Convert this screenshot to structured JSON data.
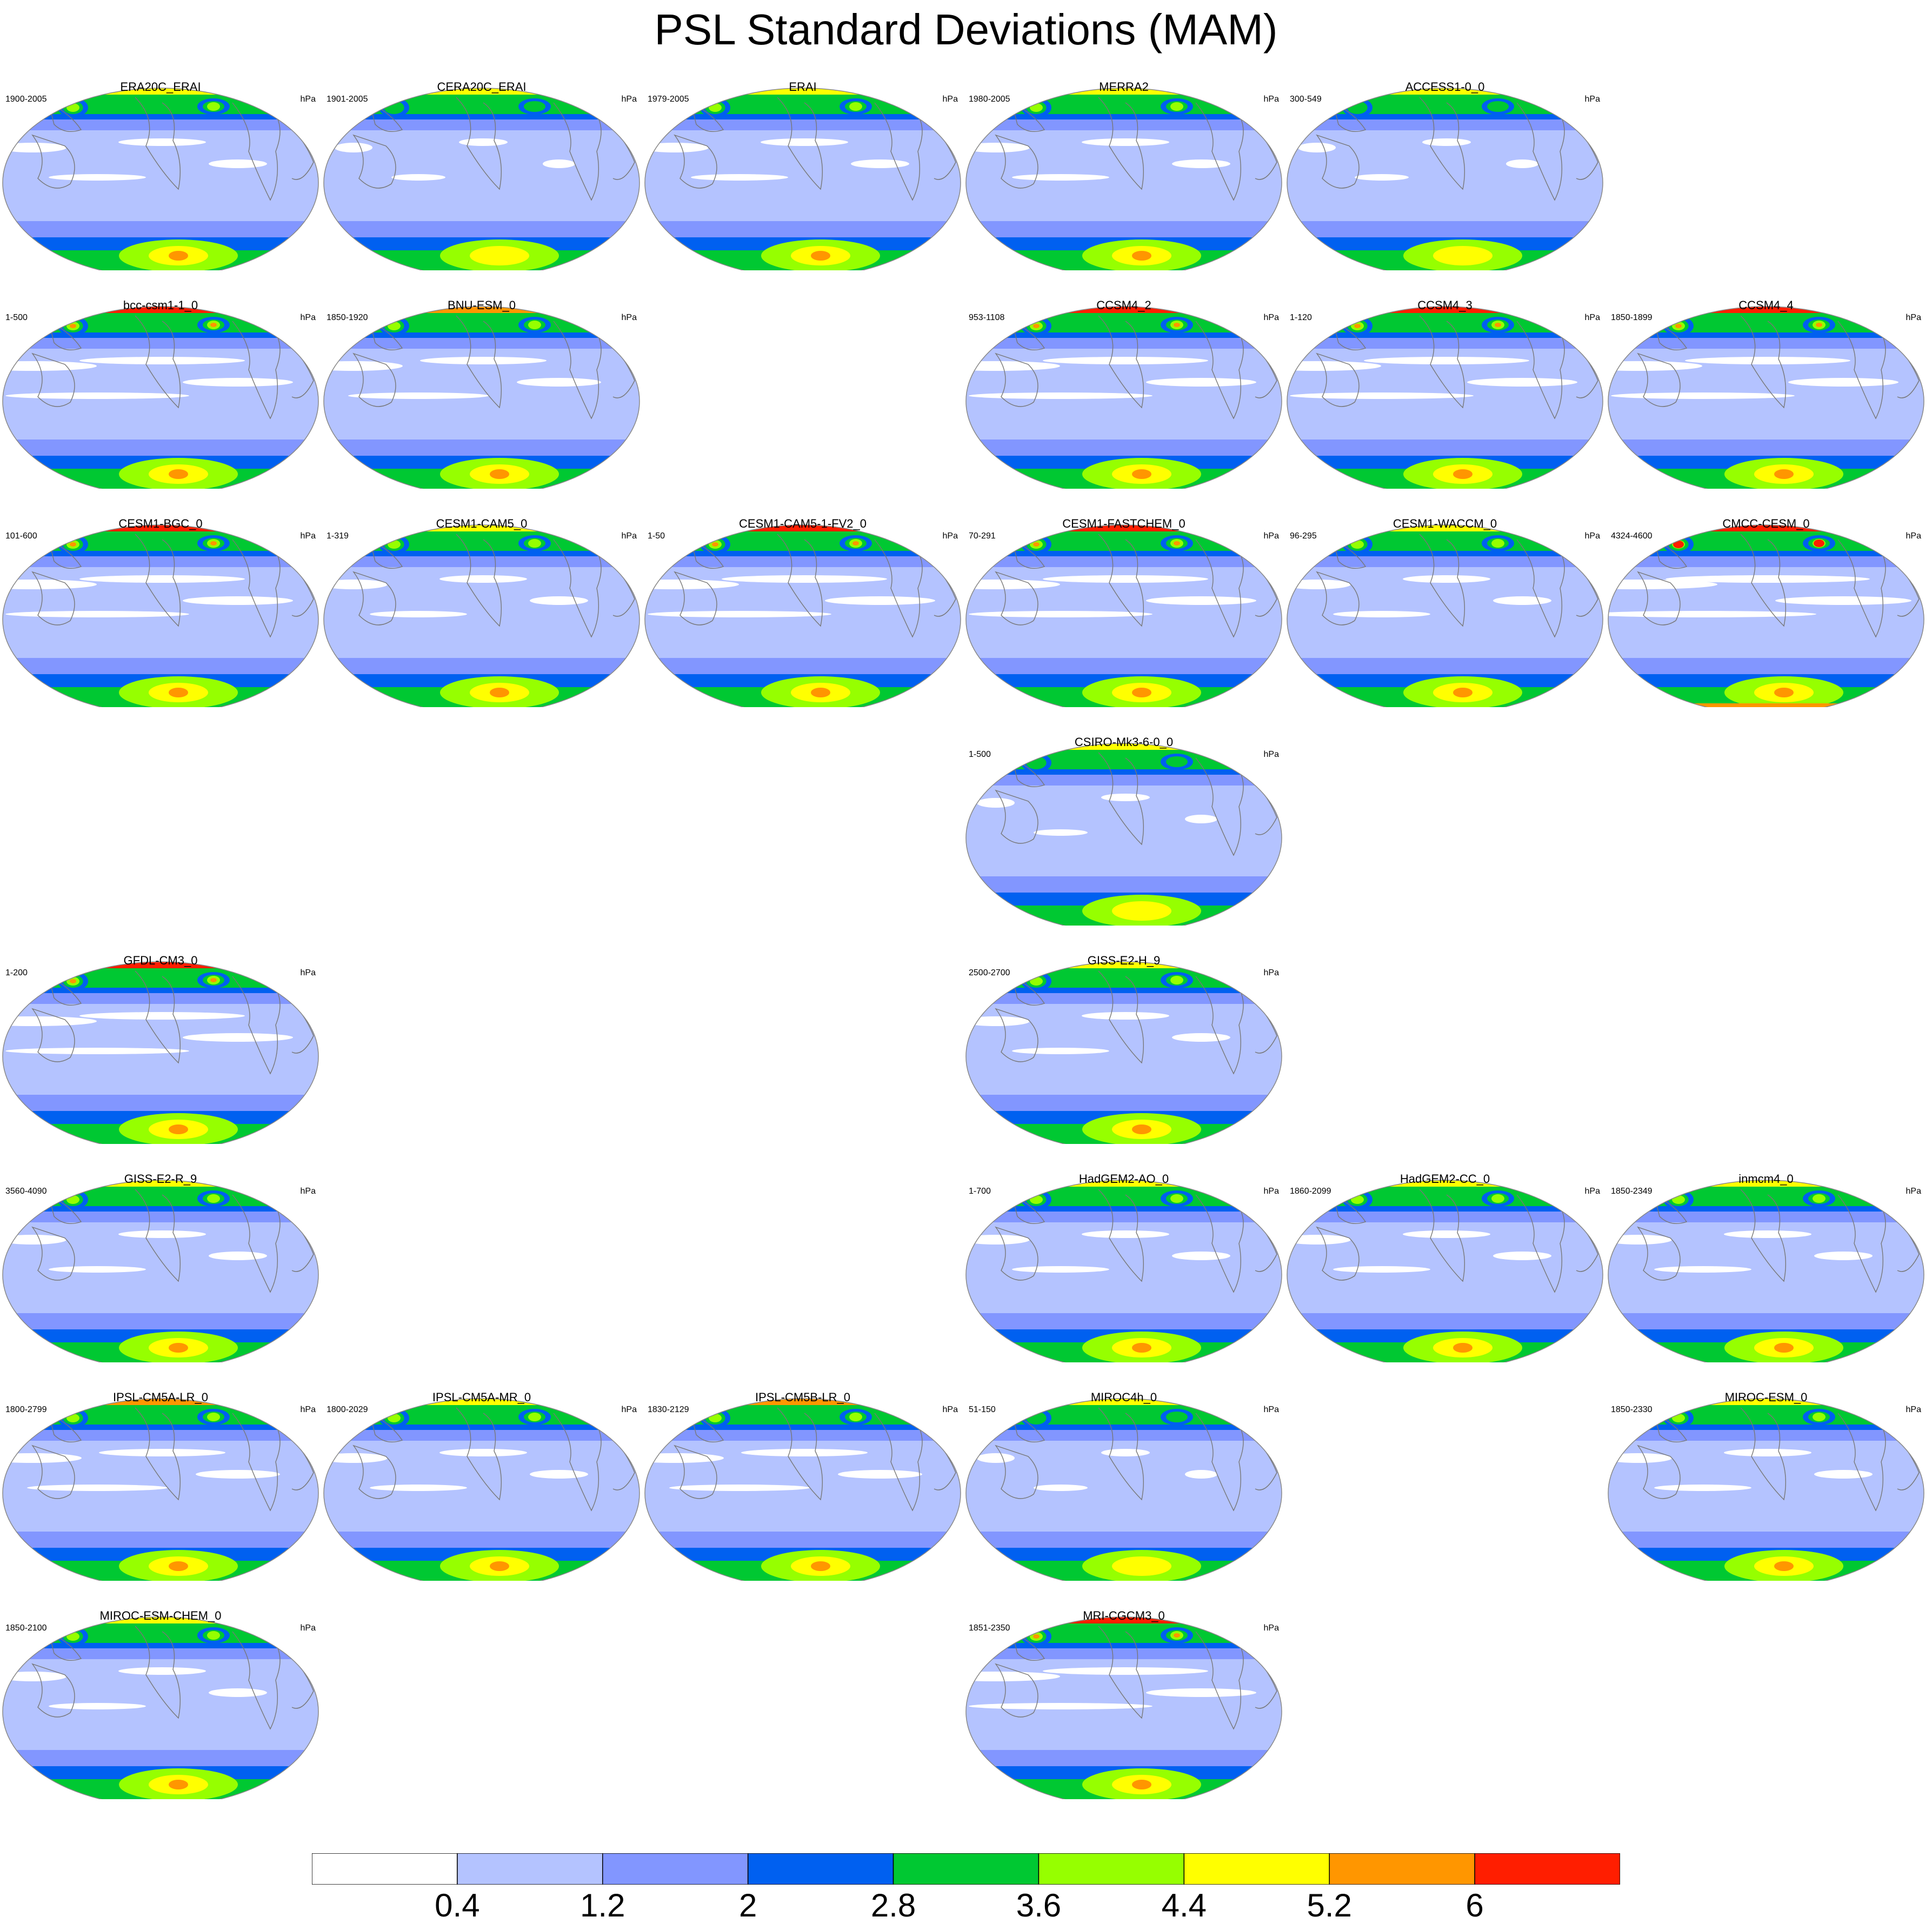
{
  "title": "PSL Standard Deviations (MAM)",
  "unit_label": "hPa",
  "colorbar": {
    "levels": [
      "0.4",
      "1.2",
      "2",
      "2.8",
      "3.6",
      "4.4",
      "5.2",
      "6"
    ],
    "colors": [
      "#ffffff",
      "#b4c3ff",
      "#8296ff",
      "#0060f0",
      "#00c832",
      "#96ff00",
      "#ffff00",
      "#ff9600",
      "#ff1e00"
    ]
  },
  "grid": {
    "columns": 6,
    "rows": 8
  },
  "panels": [
    {
      "name": "ERA20C_ERAI",
      "range": "1900-2005",
      "row": 0,
      "col": 0,
      "intensity": 1
    },
    {
      "name": "CERA20C_ERAI",
      "range": "1901-2005",
      "row": 0,
      "col": 1,
      "intensity": 0
    },
    {
      "name": "ERAI",
      "range": "1979-2005",
      "row": 0,
      "col": 2,
      "intensity": 1
    },
    {
      "name": "MERRA2",
      "range": "1980-2005",
      "row": 0,
      "col": 3,
      "intensity": 1
    },
    {
      "name": "ACCESS1-0_0",
      "range": "300-549",
      "row": 0,
      "col": 4,
      "intensity": 0
    },
    {
      "name": "bcc-csm1-1_0",
      "range": "1-500",
      "row": 1,
      "col": 0,
      "intensity": 3
    },
    {
      "name": "BNU-ESM_0",
      "range": "1850-1920",
      "row": 1,
      "col": 1,
      "intensity": 2
    },
    {
      "name": "CCSM4_2",
      "range": "953-1108",
      "row": 1,
      "col": 3,
      "intensity": 3
    },
    {
      "name": "CCSM4_3",
      "range": "1-120",
      "row": 1,
      "col": 4,
      "intensity": 3
    },
    {
      "name": "CCSM4_4",
      "range": "1850-1899",
      "row": 1,
      "col": 5,
      "intensity": 3
    },
    {
      "name": "CESM1-BGC_0",
      "range": "101-600",
      "row": 2,
      "col": 0,
      "intensity": 3
    },
    {
      "name": "CESM1-CAM5_0",
      "range": "1-319",
      "row": 2,
      "col": 1,
      "intensity": 1
    },
    {
      "name": "CESM1-CAM5-1-FV2_0",
      "range": "1-50",
      "row": 2,
      "col": 2,
      "intensity": 3
    },
    {
      "name": "CESM1-FASTCHEM_0",
      "range": "70-291",
      "row": 2,
      "col": 3,
      "intensity": 3
    },
    {
      "name": "CESM1-WACCM_0",
      "range": "96-295",
      "row": 2,
      "col": 4,
      "intensity": 1
    },
    {
      "name": "CMCC-CESM_0",
      "range": "4324-4600",
      "row": 2,
      "col": 5,
      "intensity": 4
    },
    {
      "name": "CSIRO-Mk3-6-0_0",
      "range": "1-500",
      "row": 3,
      "col": 3,
      "intensity": 0
    },
    {
      "name": "GFDL-CM3_0",
      "range": "1-200",
      "row": 4,
      "col": 0,
      "intensity": 3
    },
    {
      "name": "GISS-E2-H_9",
      "range": "2500-2700",
      "row": 4,
      "col": 3,
      "intensity": 1
    },
    {
      "name": "GISS-E2-R_9",
      "range": "3560-4090",
      "row": 5,
      "col": 0,
      "intensity": 1
    },
    {
      "name": "HadGEM2-AO_0",
      "range": "1-700",
      "row": 5,
      "col": 3,
      "intensity": 1
    },
    {
      "name": "HadGEM2-CC_0",
      "range": "1860-2099",
      "row": 5,
      "col": 4,
      "intensity": 1
    },
    {
      "name": "inmcm4_0",
      "range": "1850-2349",
      "row": 5,
      "col": 5,
      "intensity": 1
    },
    {
      "name": "IPSL-CM5A-LR_0",
      "range": "1800-2799",
      "row": 6,
      "col": 0,
      "intensity": 2
    },
    {
      "name": "IPSL-CM5A-MR_0",
      "range": "1800-2029",
      "row": 6,
      "col": 1,
      "intensity": 1
    },
    {
      "name": "IPSL-CM5B-LR_0",
      "range": "1830-2129",
      "row": 6,
      "col": 2,
      "intensity": 2
    },
    {
      "name": "MIROC4h_0",
      "range": "51-150",
      "row": 6,
      "col": 3,
      "intensity": 0
    },
    {
      "name": "MIROC-ESM_0",
      "range": "1850-2330",
      "row": 6,
      "col": 5,
      "intensity": 1
    },
    {
      "name": "MIROC-ESM-CHEM_0",
      "range": "1850-2100",
      "row": 7,
      "col": 0,
      "intensity": 1
    },
    {
      "name": "MRI-CGCM3_0",
      "range": "1851-2350",
      "row": 7,
      "col": 3,
      "intensity": 3
    }
  ]
}
